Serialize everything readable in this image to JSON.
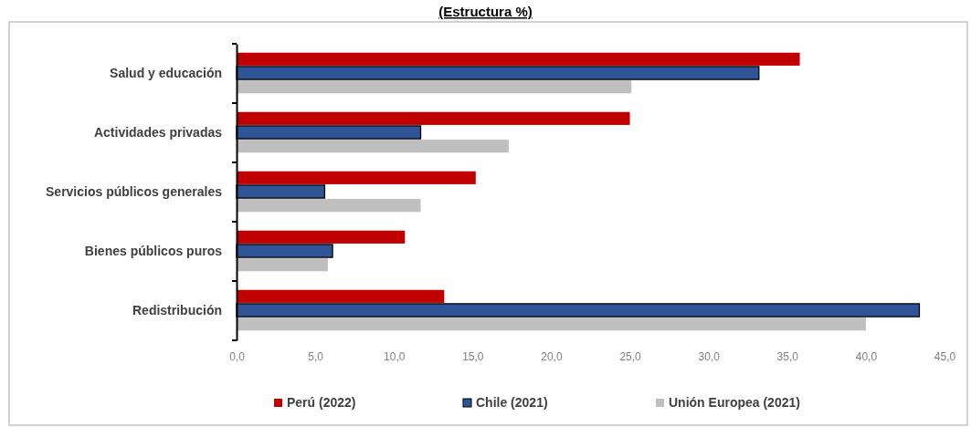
{
  "chart_data": {
    "type": "bar",
    "orientation": "horizontal",
    "title": "(Estructura %)",
    "categories": [
      "Salud y educación",
      "Actividades privadas",
      "Servicios públicos generales",
      "Bienes públicos puros",
      "Redistribución"
    ],
    "series": [
      {
        "name": "Perú (2022)",
        "color": "#c00000",
        "values": [
          35.8,
          25.0,
          15.2,
          10.7,
          13.2
        ]
      },
      {
        "name": "Chile (2021)",
        "color": "#2f5597",
        "values": [
          33.2,
          11.7,
          5.6,
          6.1,
          43.4
        ]
      },
      {
        "name": "Unión Europea (2021)",
        "color": "#bfbfbf",
        "values": [
          25.1,
          17.3,
          11.7,
          5.8,
          40.0
        ]
      }
    ],
    "xlim": [
      0,
      45
    ],
    "xticks": [
      {
        "value": 0,
        "label": "0,0"
      },
      {
        "value": 5,
        "label": "5,0"
      },
      {
        "value": 10,
        "label": "10,0"
      },
      {
        "value": 15,
        "label": "15,0"
      },
      {
        "value": 20,
        "label": "20,0"
      },
      {
        "value": 25,
        "label": "25,0"
      },
      {
        "value": 30,
        "label": "30,0"
      },
      {
        "value": 35,
        "label": "35,0"
      },
      {
        "value": 40,
        "label": "40,0"
      },
      {
        "value": 45,
        "label": "45,0"
      }
    ],
    "grid": false,
    "legend": "bottom"
  }
}
